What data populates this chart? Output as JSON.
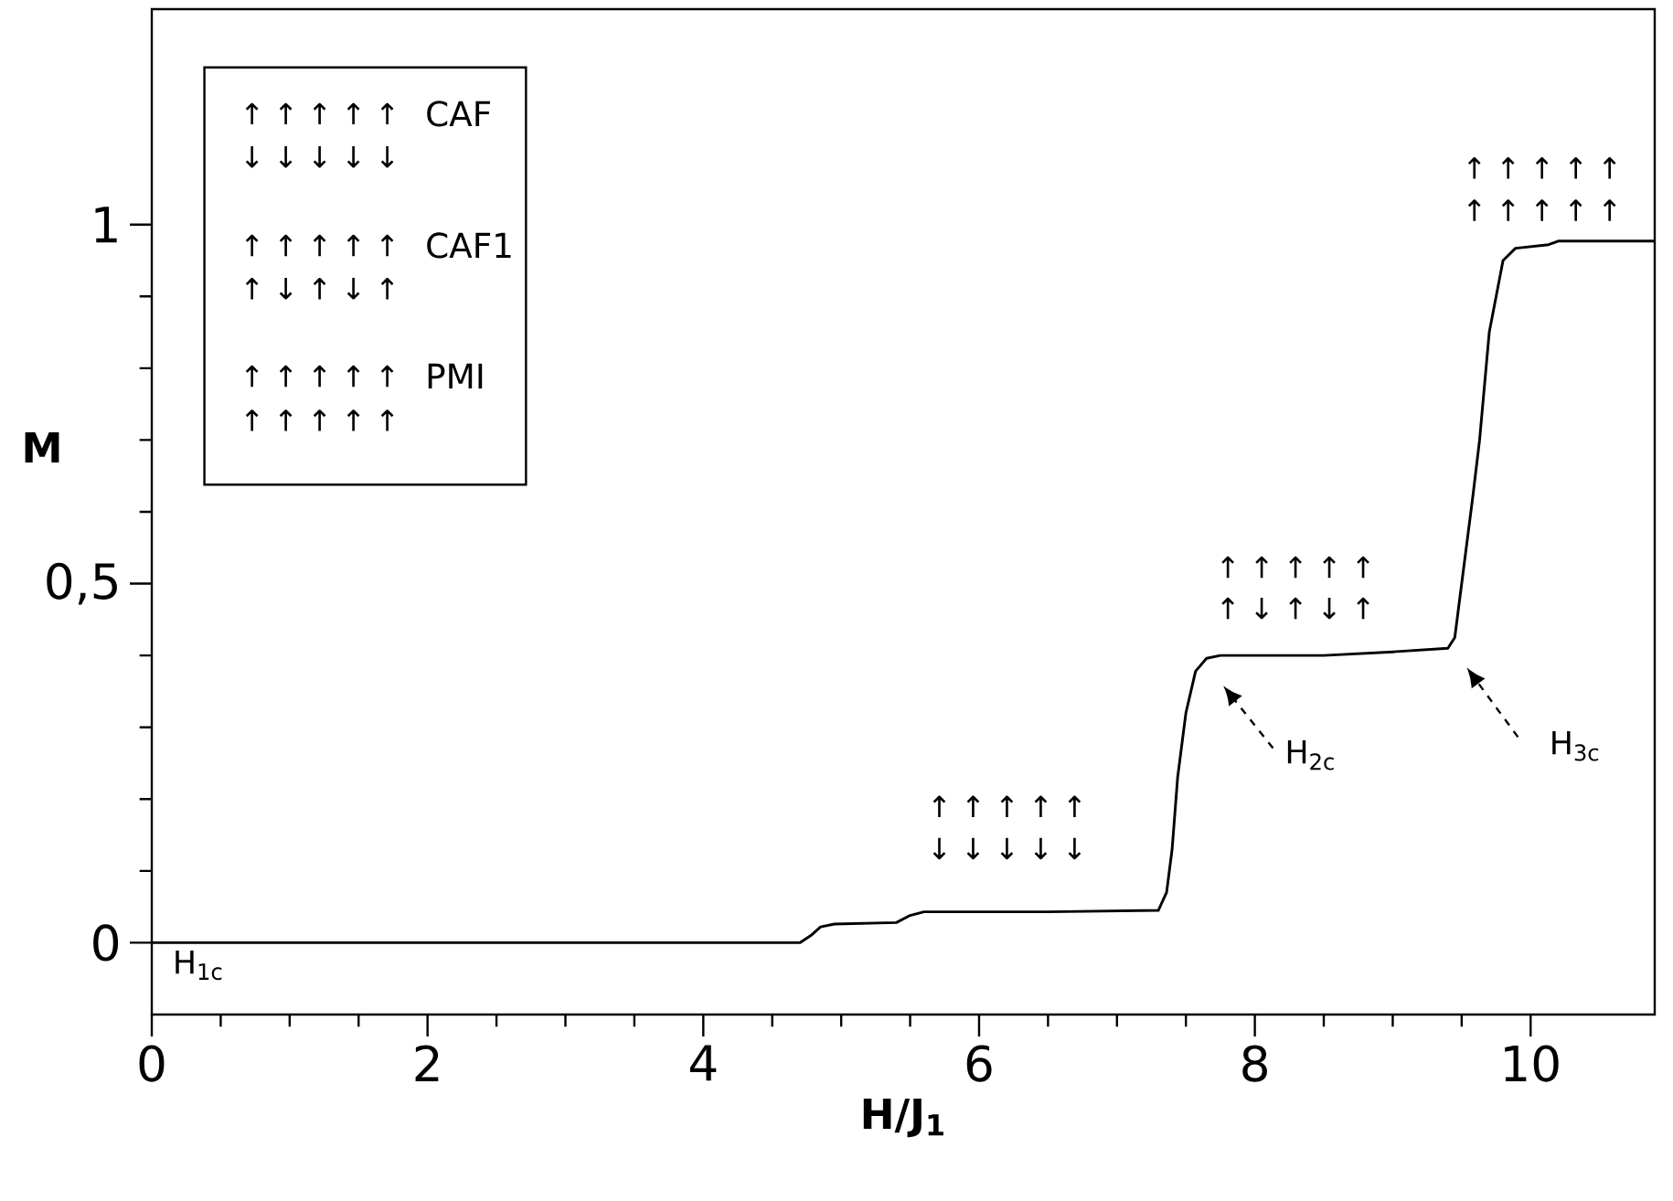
{
  "chart_data": {
    "type": "line",
    "xlabel": "H/J$_{1}$",
    "ylabel": "M",
    "x": [
      0,
      4.7,
      4.78,
      4.85,
      4.95,
      5.4,
      5.5,
      5.6,
      6.5,
      7.3,
      7.36,
      7.4,
      7.44,
      7.5,
      7.57,
      7.65,
      7.75,
      8.5,
      9.0,
      9.4,
      9.45,
      9.5,
      9.58,
      9.63,
      9.7,
      9.8,
      9.89,
      10.13,
      10.2,
      10.9
    ],
    "series": [
      {
        "color": "#000000",
        "values": [
          0,
          0,
          0.01,
          0.022,
          0.026,
          0.028,
          0.038,
          0.043,
          0.043,
          0.045,
          0.07,
          0.13,
          0.23,
          0.32,
          0.378,
          0.396,
          0.4,
          0.4,
          0.405,
          0.41,
          0.425,
          0.5,
          0.62,
          0.7,
          0.85,
          0.95,
          0.967,
          0.972,
          0.977,
          0.977
        ]
      }
    ],
    "xlim": [
      0,
      10.9
    ],
    "ylim": [
      -0.1,
      1.3
    ],
    "xticks": [
      0,
      2,
      4,
      6,
      8,
      10
    ],
    "yticks": [
      0,
      {
        "value": 0.5,
        "label": "0,5"
      },
      1
    ],
    "marker": "none",
    "line_style": "solid",
    "annotations": [
      "↑ ↑ ↑ ↑ ↑",
      "CAF",
      "↓ ↓ ↓ ↓ ↓",
      "↑ ↑ ↑ ↑ ↑",
      "CAF1",
      "↑ ↓ ↑ ↓ ↑",
      "↑ ↑ ↑ ↑ ↑",
      "PMI",
      "↑ ↑ ↑ ↑ ↑",
      "↑ ↑ ↑ ↑ ↑",
      "↓ ↓ ↓ ↓ ↓",
      "↑ ↑ ↑ ↑ ↑",
      "↑ ↓ ↑ ↓ ↑",
      "↑ ↑ ↑ ↑ ↑",
      "↑ ↑ ↑ ↑ ↑",
      "H$_{1c}$",
      "H$_{2c}$",
      "H$_{3c}$"
    ]
  }
}
